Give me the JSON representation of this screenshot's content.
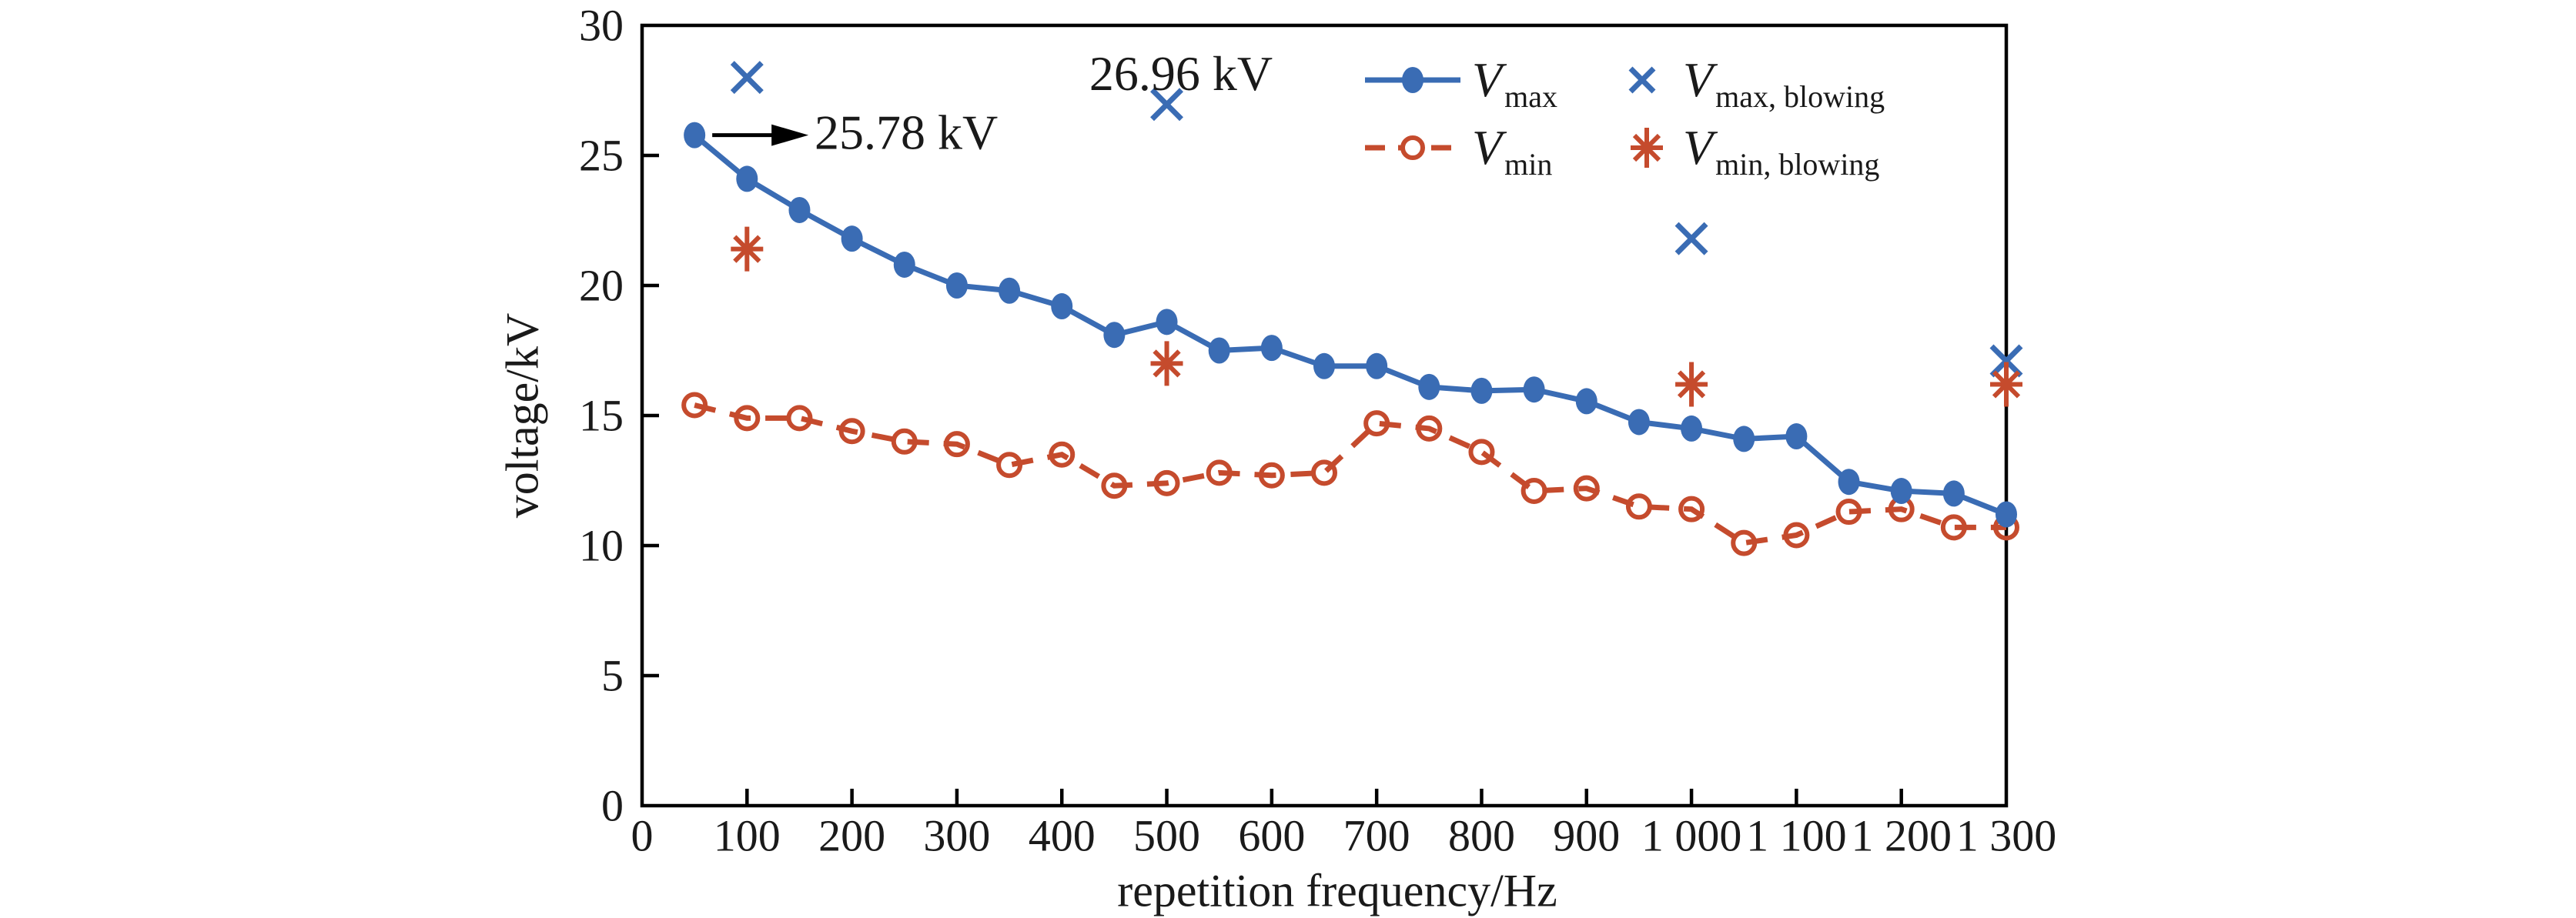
{
  "chart_data": {
    "type": "line",
    "title": "",
    "xlabel": "repetition frequency/Hz",
    "ylabel": "voltage/kV",
    "xlim": [
      0,
      1300
    ],
    "ylim": [
      0,
      30
    ],
    "grid": false,
    "legend_position": "upper right inside",
    "x_ticks": [
      0,
      100,
      200,
      300,
      400,
      500,
      600,
      700,
      800,
      900,
      1000,
      1100,
      1200,
      1300
    ],
    "x_tick_labels": [
      "0",
      "100",
      "200",
      "300",
      "400",
      "500",
      "600",
      "700",
      "800",
      "900",
      "1 000",
      "1 100",
      "1 200",
      "1 300"
    ],
    "y_ticks": [
      0,
      5,
      10,
      15,
      20,
      25,
      30
    ],
    "y_tick_labels": [
      "0",
      "5",
      "10",
      "15",
      "20",
      "25",
      "30"
    ],
    "x": [
      50,
      100,
      150,
      200,
      250,
      300,
      350,
      400,
      450,
      500,
      550,
      600,
      650,
      700,
      750,
      800,
      850,
      900,
      950,
      1000,
      1050,
      1100,
      1150,
      1200,
      1250,
      1300
    ],
    "series": [
      {
        "name": "V_max",
        "line_style": "solid",
        "marker": "filled-circle",
        "color": "#3a6cb4",
        "values": [
          25.78,
          24.1,
          22.9,
          21.8,
          20.8,
          20.0,
          19.8,
          19.2,
          18.1,
          18.6,
          17.5,
          17.6,
          16.9,
          16.9,
          16.1,
          15.95,
          16.0,
          15.55,
          14.75,
          14.5,
          14.1,
          14.2,
          12.45,
          12.1,
          12.0,
          11.2
        ]
      },
      {
        "name": "V_min",
        "line_style": "dashed",
        "marker": "open-circle",
        "color": "#c54b2d",
        "values": [
          15.4,
          14.9,
          14.9,
          14.4,
          14.0,
          13.9,
          13.1,
          13.5,
          12.3,
          12.4,
          12.8,
          12.7,
          12.8,
          14.7,
          14.5,
          13.6,
          12.1,
          12.2,
          11.5,
          11.4,
          10.1,
          10.4,
          11.3,
          11.4,
          10.7,
          10.7
        ]
      }
    ],
    "scatter_series": [
      {
        "name": "V_max_blowing",
        "marker": "x",
        "color": "#3a6cb4",
        "x": [
          100,
          500,
          1000,
          1300
        ],
        "values": [
          28.0,
          26.96,
          21.8,
          17.1
        ]
      },
      {
        "name": "V_min_blowing",
        "marker": "asterisk",
        "color": "#c54b2d",
        "x": [
          100,
          500,
          1000,
          1300
        ],
        "values": [
          21.4,
          17.0,
          16.2,
          16.2
        ]
      }
    ],
    "annotations": [
      {
        "text": "25.78 kV",
        "type": "arrow-right-from-point",
        "point_x": 50,
        "point_y": 25.78
      },
      {
        "text": "26.96 kV",
        "type": "label-above-point",
        "point_x": 500,
        "point_y": 26.96
      }
    ],
    "legend": {
      "rows": [
        {
          "left": {
            "main": "V",
            "sub": "max"
          },
          "right": {
            "main": "V",
            "sub": "max, blowing"
          }
        },
        {
          "left": {
            "main": "V",
            "sub": "min"
          },
          "right": {
            "main": "V",
            "sub": "min, blowing"
          }
        }
      ]
    },
    "colors": {
      "vmax_blue": "#3a6cb4",
      "vmin_red": "#c54b2d",
      "axis_black": "#000000"
    }
  }
}
